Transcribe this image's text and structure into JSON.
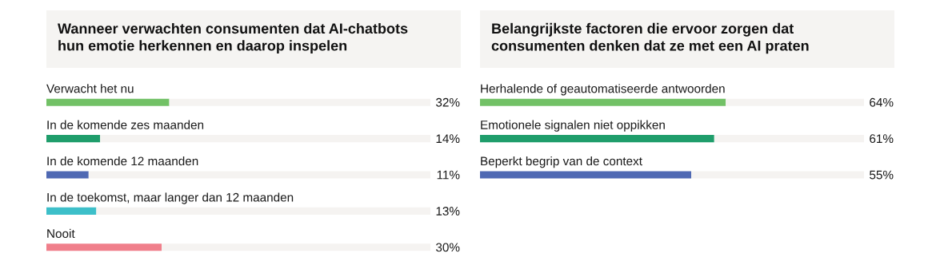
{
  "chart_data": [
    {
      "type": "bar",
      "orientation": "horizontal",
      "stacked": true,
      "title": "Wanneer verwachten consumenten dat AI-chatbots\nhun emotie herkennen en daarop inspelen",
      "categories": [
        "Verwacht het nu",
        "In de komende zes maanden",
        "In de komende 12 maanden",
        "In de toekomst, maar langer dan 12 maanden",
        "Nooit"
      ],
      "series": [
        {
          "colors": [
            "#72c166",
            "#1f9d6b",
            "#4f69b3",
            "#3dbfc9",
            "#f07f8b"
          ],
          "values": [
            32,
            14,
            11,
            13,
            30
          ],
          "value_labels": [
            "32%",
            "14%",
            "11%",
            "13%",
            "30%"
          ]
        },
        {
          "color": "#f5f3f1",
          "values": [
            68,
            86,
            89,
            87,
            70
          ]
        }
      ],
      "xlim": [
        0,
        100
      ],
      "tick_labels": "y"
    },
    {
      "type": "bar",
      "orientation": "horizontal",
      "stacked": true,
      "title": "Belangrijkste factoren die ervoor zorgen dat\nconsumenten denken dat ze met een AI praten",
      "categories": [
        "Herhalende of geautomatiseerde antwoorden",
        "Emotionele signalen niet oppikken",
        "Beperkt begrip van de context"
      ],
      "series": [
        {
          "colors": [
            "#72c166",
            "#1f9d6b",
            "#4f69b3"
          ],
          "values": [
            64,
            61,
            55
          ],
          "value_labels": [
            "64%",
            "61%",
            "55%"
          ]
        },
        {
          "color": "#f5f3f1",
          "values": [
            36,
            39,
            45
          ]
        }
      ],
      "xlim": [
        0,
        100
      ],
      "tick_labels": "y"
    }
  ]
}
